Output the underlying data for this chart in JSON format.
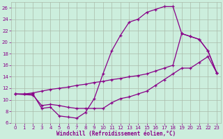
{
  "xlabel": "Windchill (Refroidissement éolien,°C)",
  "bg_color": "#cceedd",
  "grid_color": "#aabbaa",
  "line_color": "#880088",
  "xlim": [
    -0.5,
    23.5
  ],
  "ylim": [
    6,
    27
  ],
  "xticks": [
    0,
    1,
    2,
    3,
    4,
    5,
    6,
    7,
    8,
    9,
    10,
    11,
    12,
    13,
    14,
    15,
    16,
    17,
    18,
    19,
    20,
    21,
    22,
    23
  ],
  "yticks": [
    6,
    8,
    10,
    12,
    14,
    16,
    18,
    20,
    22,
    24,
    26
  ],
  "line1_x": [
    0,
    1,
    2,
    3,
    4,
    5,
    6,
    7,
    8,
    9,
    10,
    11,
    12,
    13,
    14,
    15,
    16,
    17,
    18,
    19,
    20,
    21,
    22,
    23
  ],
  "line1_y": [
    11,
    11,
    11,
    8.5,
    8.7,
    7.2,
    7.0,
    6.8,
    7.8,
    10.2,
    14.5,
    18.5,
    21.2,
    23.5,
    24.0,
    25.2,
    25.7,
    26.2,
    26.2,
    21.5,
    21.0,
    20.5,
    18.5,
    14.7
  ],
  "line2_x": [
    0,
    2,
    3,
    4,
    5,
    6,
    7,
    8,
    9,
    10,
    11,
    12,
    13,
    14,
    15,
    16,
    17,
    18,
    19,
    20,
    21,
    22,
    23
  ],
  "line2_y": [
    11,
    10.8,
    9.0,
    9.2,
    9.0,
    8.7,
    8.5,
    8.5,
    8.5,
    8.5,
    9.5,
    10.2,
    10.5,
    11.0,
    11.5,
    12.5,
    13.5,
    14.5,
    15.5,
    15.5,
    16.5,
    17.5,
    14.7
  ],
  "line3_x": [
    0,
    1,
    2,
    3,
    4,
    5,
    6,
    7,
    8,
    9,
    10,
    11,
    12,
    13,
    14,
    15,
    16,
    17,
    18,
    19,
    20,
    21,
    22,
    23
  ],
  "line3_y": [
    11,
    11.0,
    11.2,
    11.5,
    11.8,
    12.0,
    12.2,
    12.5,
    12.7,
    13.0,
    13.2,
    13.5,
    13.7,
    14.0,
    14.2,
    14.5,
    15.0,
    15.5,
    16.0,
    21.5,
    21.0,
    20.5,
    18.5,
    14.7
  ]
}
